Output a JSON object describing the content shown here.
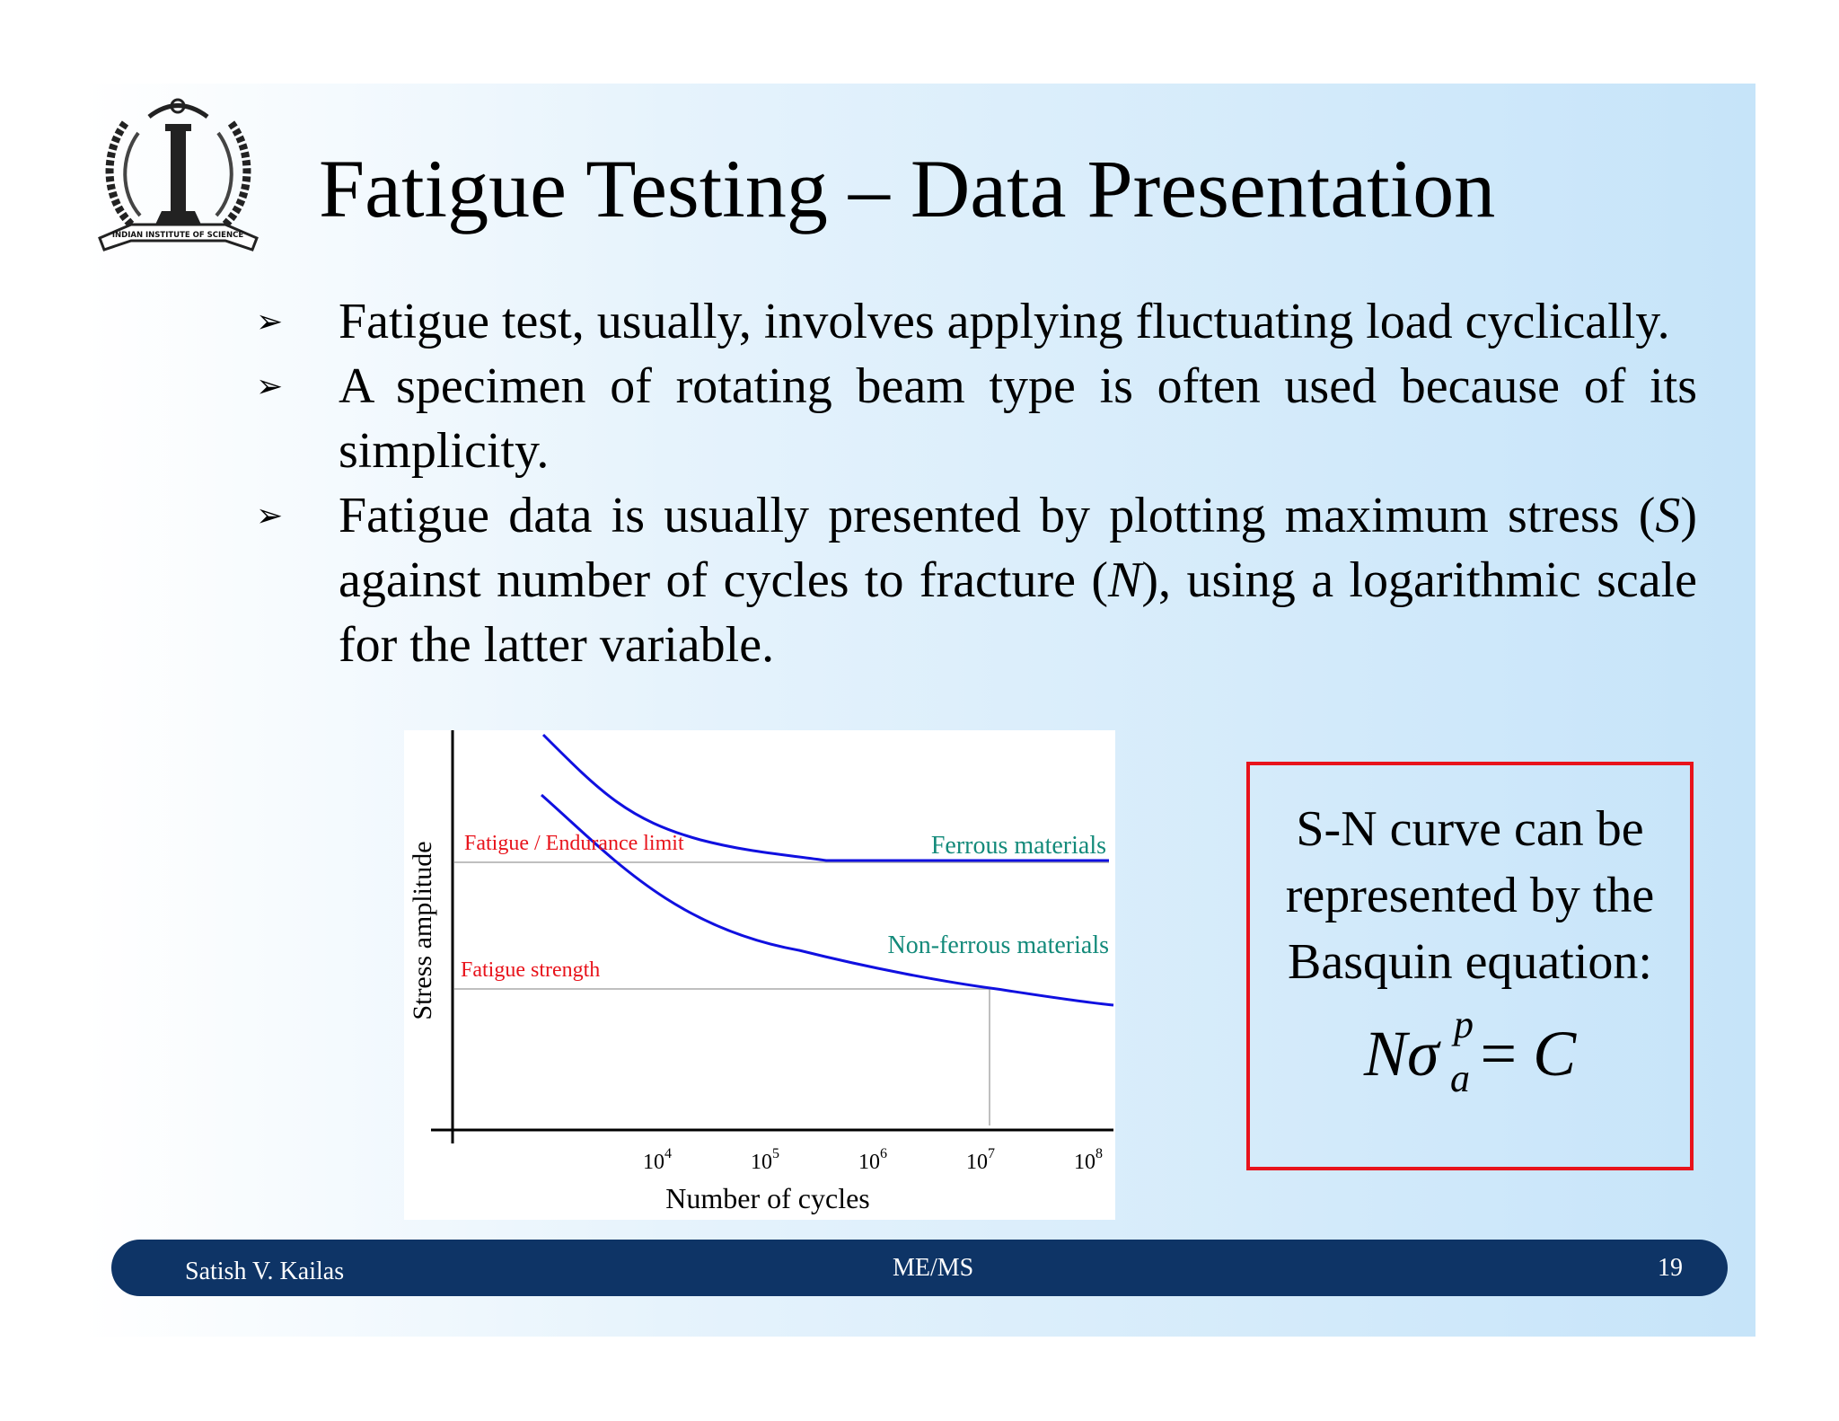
{
  "slide": {
    "logo": {
      "icon": "iisc-emblem",
      "text": "INDIAN INSTITUTE OF SCIENCE"
    },
    "title": "Fatigue Testing – Data Presentation",
    "bullets": [
      {
        "text": "Fatigue test, usually, involves applying fluctuating load cyclically."
      },
      {
        "text": "A specimen of rotating beam type is often used because of its simplicity."
      },
      {
        "part1": "Fatigue data is usually presented by plotting maximum stress (",
        "sym1": "S",
        "part2": ") against number of cycles to fracture (",
        "sym2": "N",
        "part3": "), using a logarithmic scale for the latter variable."
      }
    ],
    "equation_box": {
      "text": "S-N curve can be represented by the Basquin equation:",
      "formula": {
        "N": "N",
        "sigma": "σ",
        "sup": "p",
        "sub": "a",
        "eq": "=",
        "C": "C"
      }
    },
    "footer": {
      "author": "Satish V. Kailas",
      "center": "ME/MS",
      "page": "19"
    }
  },
  "chart_data": {
    "type": "line",
    "xlabel": "Number of cycles",
    "ylabel": "Stress amplitude",
    "x_scale": "log",
    "x_ticks": [
      {
        "base": "10",
        "exp": "4"
      },
      {
        "base": "10",
        "exp": "5"
      },
      {
        "base": "10",
        "exp": "6"
      },
      {
        "base": "10",
        "exp": "7"
      },
      {
        "base": "10",
        "exp": "8"
      }
    ],
    "series": [
      {
        "name": "Ferrous materials",
        "color": "#1010e0",
        "label_color": "#138a7a"
      },
      {
        "name": "Non-ferrous materials",
        "color": "#1010e0",
        "label_color": "#138a7a"
      }
    ],
    "annotations": [
      {
        "text": "Fatigue / Endurance limit",
        "color": "#e8131b"
      },
      {
        "text": "Fatigue strength",
        "color": "#e8131b"
      }
    ],
    "grid": false
  }
}
